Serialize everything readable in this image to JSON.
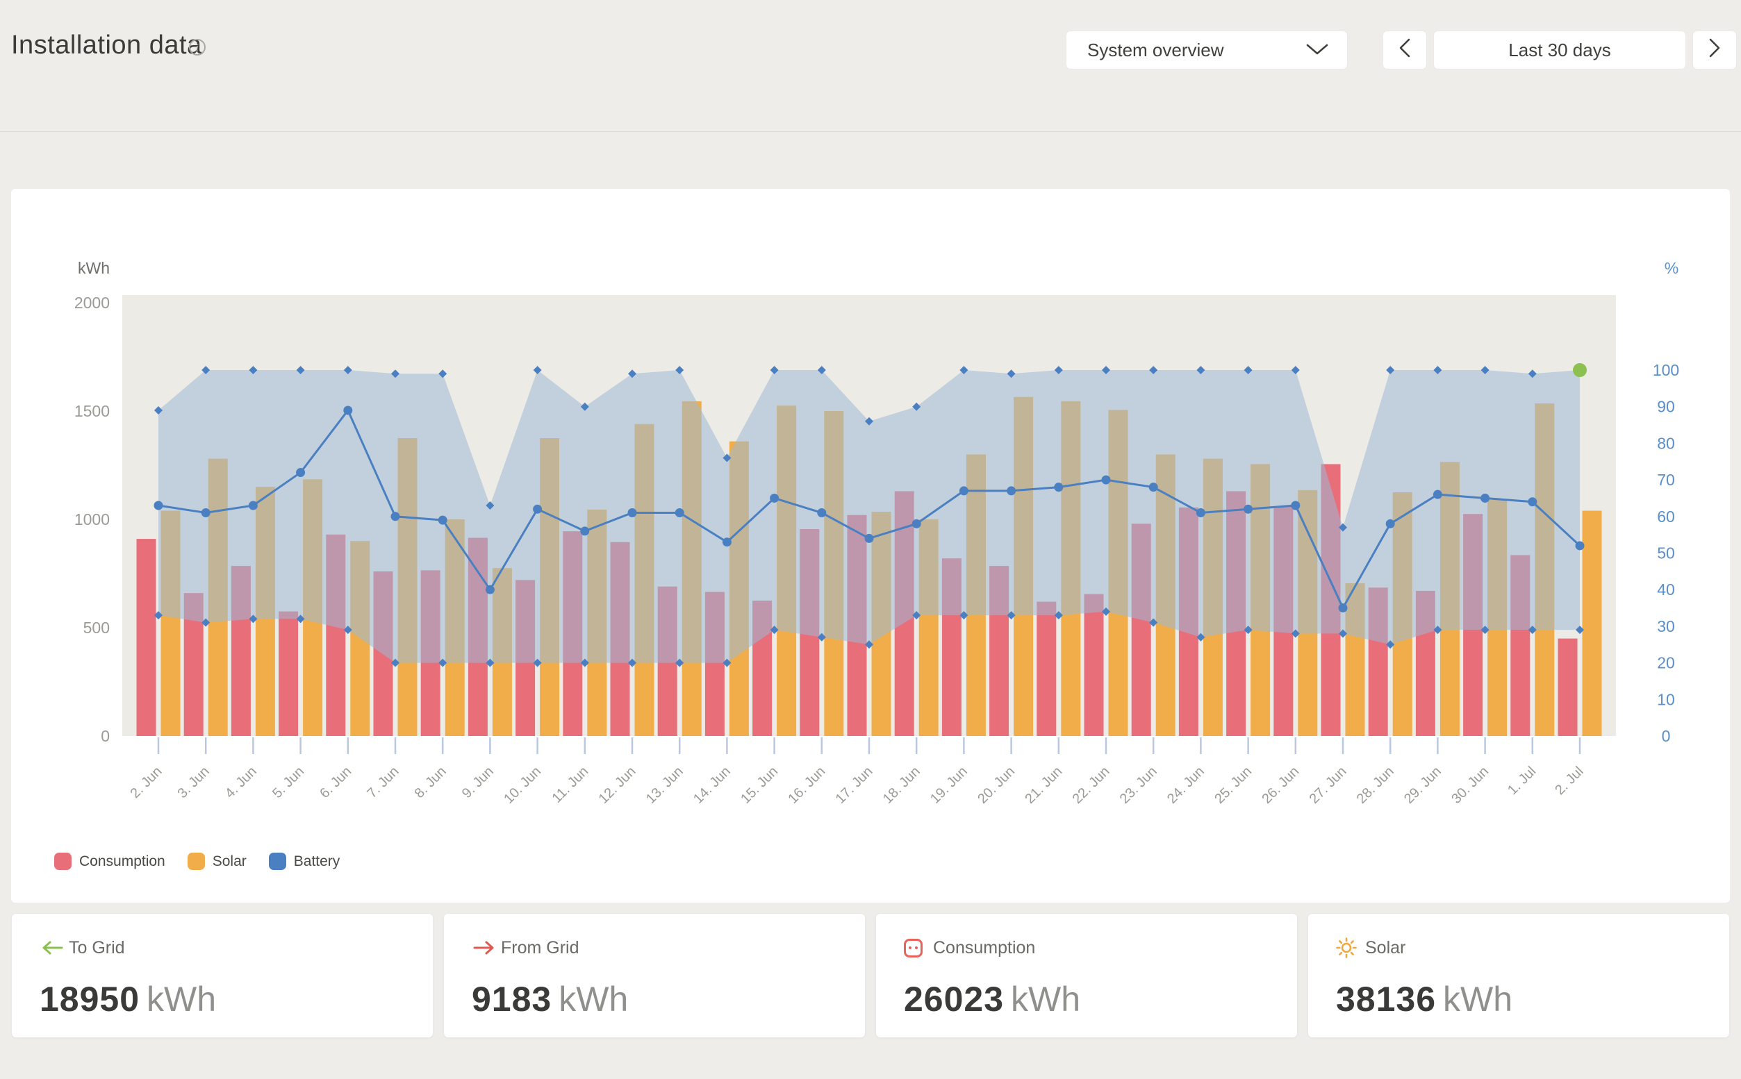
{
  "header": {
    "title": "Installation data",
    "info_icon": "i",
    "view_selector": {
      "value": "System overview",
      "icon": "chevron-down-icon"
    },
    "date_range": {
      "label": "Last 30 days",
      "prev_icon": "chevron-left-icon",
      "next_icon": "chevron-right-icon"
    }
  },
  "colors": {
    "consumption": "#e86e7a",
    "solar": "#f0ad4a",
    "battery": "#4a7fc1",
    "battery_band_fill": "rgba(157,185,214,0.55)",
    "current_point_green": "#8cc152",
    "plot_background": "#edebe5",
    "axis_text": "#9b9a95",
    "right_axis_text": "#5b8fc9",
    "tick_stub": "#b9c8e0"
  },
  "chart": {
    "y_axis_left": {
      "title": "kWh",
      "ticks": [
        "2000",
        "1500",
        "1000",
        "500",
        "0"
      ]
    },
    "y_axis_right": {
      "title": "%",
      "ticks": [
        "100",
        "90",
        "80",
        "70",
        "60",
        "50",
        "40",
        "30",
        "20",
        "10",
        "0"
      ]
    },
    "legend": [
      {
        "label": "Consumption"
      },
      {
        "label": "Solar"
      },
      {
        "label": "Battery"
      }
    ]
  },
  "chart_data": {
    "type": "bar+line+area-band",
    "title": "Installation data — last 30 days",
    "xlabel": "",
    "ylabel_left": "kWh",
    "ylabel_right": "%",
    "ylim_left": [
      0,
      2000
    ],
    "ylim_right": [
      0,
      100
    ],
    "grid": false,
    "legend_position": "bottom-left",
    "categories": [
      "2. Jun",
      "3. Jun",
      "4. Jun",
      "5. Jun",
      "6. Jun",
      "7. Jun",
      "8. Jun",
      "9. Jun",
      "10. Jun",
      "11. Jun",
      "12. Jun",
      "13. Jun",
      "14. Jun",
      "15. Jun",
      "16. Jun",
      "17. Jun",
      "18. Jun",
      "19. Jun",
      "20. Jun",
      "21. Jun",
      "22. Jun",
      "23. Jun",
      "24. Jun",
      "25. Jun",
      "26. Jun",
      "27. Jun",
      "28. Jun",
      "29. Jun",
      "30. Jun",
      "1. Jul",
      "2. Jul"
    ],
    "series": [
      {
        "name": "Consumption",
        "unit": "kWh",
        "axis": "left",
        "style": "bar",
        "values": [
          910,
          660,
          785,
          575,
          930,
          760,
          765,
          915,
          720,
          945,
          895,
          690,
          665,
          625,
          955,
          1020,
          1130,
          820,
          785,
          620,
          655,
          980,
          1055,
          1130,
          1060,
          1255,
          685,
          670,
          1025,
          835,
          450
        ]
      },
      {
        "name": "Solar",
        "unit": "kWh",
        "axis": "left",
        "style": "bar",
        "values": [
          1040,
          1280,
          1150,
          1185,
          900,
          1375,
          1000,
          775,
          1375,
          1045,
          1440,
          1545,
          1360,
          1525,
          1500,
          1035,
          1000,
          1300,
          1565,
          1545,
          1505,
          1300,
          1280,
          1255,
          1135,
          705,
          1125,
          1265,
          1090,
          1535,
          1040
        ]
      },
      {
        "name": "Battery",
        "unit": "%",
        "axis": "right",
        "style": "line-markers",
        "values": [
          63,
          61,
          63,
          72,
          89,
          60,
          59,
          40,
          62,
          56,
          61,
          61,
          53,
          65,
          61,
          54,
          58,
          67,
          67,
          68,
          70,
          68,
          61,
          62,
          63,
          35,
          58,
          66,
          65,
          64,
          52
        ]
      },
      {
        "name": "Battery band upper",
        "unit": "%",
        "axis": "right",
        "style": "band-upper-diamonds",
        "values": [
          89,
          100,
          100,
          100,
          100,
          99,
          99,
          63,
          100,
          90,
          99,
          100,
          76,
          100,
          100,
          86,
          90,
          100,
          99,
          100,
          100,
          100,
          100,
          100,
          100,
          57,
          100,
          100,
          100,
          99,
          100
        ]
      },
      {
        "name": "Battery band lower",
        "unit": "%",
        "axis": "right",
        "style": "band-lower-diamonds",
        "values": [
          33,
          31,
          32,
          32,
          29,
          20,
          20,
          20,
          20,
          20,
          20,
          20,
          20,
          29,
          27,
          25,
          33,
          33,
          33,
          33,
          34,
          31,
          27,
          29,
          28,
          28,
          25,
          29,
          29,
          29,
          29
        ]
      }
    ],
    "last_point_marker": {
      "series": "Battery band upper",
      "category": "2. Jul",
      "value": 100,
      "color": "#8cc152"
    }
  },
  "cards": [
    {
      "label": "To Grid",
      "value": "18950",
      "unit": "kWh",
      "icon": "arrow-left-icon",
      "icon_color": "#8cc152"
    },
    {
      "label": "From Grid",
      "value": "9183",
      "unit": "kWh",
      "icon": "arrow-right-icon",
      "icon_color": "#e05a52"
    },
    {
      "label": "Consumption",
      "value": "26023",
      "unit": "kWh",
      "icon": "power-socket-icon",
      "icon_color": "#e8645a"
    },
    {
      "label": "Solar",
      "value": "38136",
      "unit": "kWh",
      "icon": "sun-icon",
      "icon_color": "#f0a73e"
    }
  ]
}
